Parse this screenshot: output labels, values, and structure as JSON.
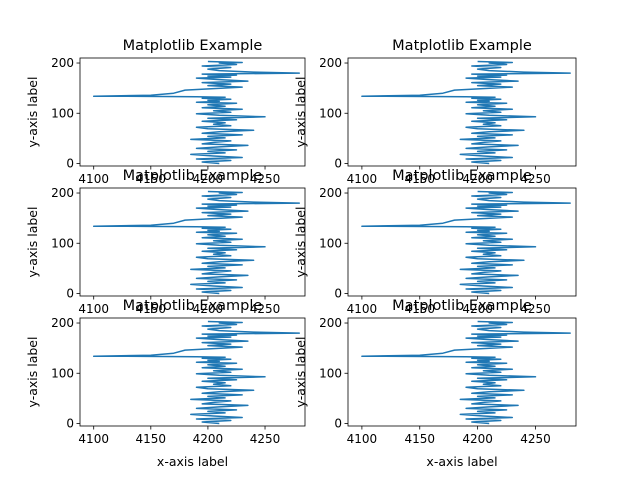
{
  "figure": {
    "background": "#ffffff",
    "line_color": "#1f77b4",
    "rows": 2,
    "cols": 3
  },
  "chart_data": [
    {
      "type": "line",
      "title": "Matplotlib Example",
      "xlabel": "",
      "ylabel": "y-axis label",
      "xlim": [
        4088,
        4285
      ],
      "ylim": [
        -5,
        210
      ],
      "xticks": [
        4100,
        4150,
        4200,
        4250
      ],
      "yticks": [
        0,
        100,
        200
      ],
      "grid": false,
      "legend": "none",
      "series": [
        {
          "x": [
            4210,
            4195,
            4220,
            4190,
            4230,
            4205,
            4185,
            4215,
            4200,
            4225,
            4190,
            4210,
            4235,
            4195,
            4205,
            4220,
            4185,
            4215,
            4200,
            4230,
            4195,
            4210,
            4240,
            4200,
            4190,
            4220,
            4205,
            4215,
            4195,
            4225,
            4200,
            4250,
            4210,
            4190,
            4220,
            4205,
            4230,
            4195,
            4215,
            4200,
            4225,
            4190,
            4210,
            4200,
            4220,
            4195,
            4205,
            4215,
            4190,
            4120,
            4100,
            4150,
            4170,
            4180,
            4230,
            4200,
            4220,
            4195,
            4235,
            4210,
            4190,
            4220,
            4200,
            4225,
            4195,
            4280,
            4240,
            4210,
            4200,
            4220,
            4195,
            4225,
            4210,
            4230,
            4200
          ],
          "y": [
            0,
            3,
            6,
            9,
            12,
            15,
            18,
            21,
            24,
            27,
            30,
            33,
            36,
            39,
            42,
            45,
            48,
            51,
            54,
            57,
            60,
            63,
            66,
            69,
            72,
            75,
            78,
            81,
            84,
            87,
            90,
            93,
            96,
            99,
            102,
            105,
            108,
            111,
            114,
            117,
            120,
            122,
            124,
            126,
            128,
            130,
            131,
            132,
            133,
            134,
            134,
            136,
            140,
            146,
            152,
            155,
            158,
            161,
            164,
            167,
            170,
            172,
            174,
            176,
            178,
            180,
            182,
            185,
            188,
            191,
            194,
            197,
            200,
            201,
            203
          ]
        }
      ]
    },
    {
      "type": "line",
      "title": "Matplotlib Example",
      "xlabel": "",
      "ylabel": "y-axis label",
      "xlim": [
        4088,
        4285
      ],
      "ylim": [
        -5,
        210
      ],
      "xticks": [
        4100,
        4150,
        4200,
        4250
      ],
      "yticks": [
        0,
        100,
        200
      ],
      "grid": false,
      "legend": "none",
      "series": [
        {
          "x": [
            4210,
            4195,
            4220,
            4190,
            4230,
            4205,
            4185,
            4215,
            4200,
            4225,
            4190,
            4210,
            4235,
            4195,
            4205,
            4220,
            4185,
            4215,
            4200,
            4230,
            4195,
            4210,
            4240,
            4200,
            4190,
            4220,
            4205,
            4215,
            4195,
            4225,
            4200,
            4250,
            4210,
            4190,
            4220,
            4205,
            4230,
            4195,
            4215,
            4200,
            4225,
            4190,
            4210,
            4200,
            4220,
            4195,
            4205,
            4215,
            4190,
            4120,
            4100,
            4150,
            4170,
            4180,
            4230,
            4200,
            4220,
            4195,
            4235,
            4210,
            4190,
            4220,
            4200,
            4225,
            4195,
            4280,
            4240,
            4210,
            4200,
            4220,
            4195,
            4225,
            4210,
            4230,
            4200
          ],
          "y": [
            0,
            3,
            6,
            9,
            12,
            15,
            18,
            21,
            24,
            27,
            30,
            33,
            36,
            39,
            42,
            45,
            48,
            51,
            54,
            57,
            60,
            63,
            66,
            69,
            72,
            75,
            78,
            81,
            84,
            87,
            90,
            93,
            96,
            99,
            102,
            105,
            108,
            111,
            114,
            117,
            120,
            122,
            124,
            126,
            128,
            130,
            131,
            132,
            133,
            134,
            134,
            136,
            140,
            146,
            152,
            155,
            158,
            161,
            164,
            167,
            170,
            172,
            174,
            176,
            178,
            180,
            182,
            185,
            188,
            191,
            194,
            197,
            200,
            201,
            203
          ]
        }
      ]
    },
    {
      "type": "line",
      "title": "Matplotlib Example",
      "xlabel": "",
      "ylabel": "y-axis label",
      "xlim": [
        4088,
        4285
      ],
      "ylim": [
        -5,
        210
      ],
      "xticks": [
        4100,
        4150,
        4200,
        4250
      ],
      "yticks": [
        0,
        100,
        200
      ],
      "grid": false,
      "legend": "none",
      "series": [
        {
          "x": [
            4210,
            4195,
            4220,
            4190,
            4230,
            4205,
            4185,
            4215,
            4200,
            4225,
            4190,
            4210,
            4235,
            4195,
            4205,
            4220,
            4185,
            4215,
            4200,
            4230,
            4195,
            4210,
            4240,
            4200,
            4190,
            4220,
            4205,
            4215,
            4195,
            4225,
            4200,
            4250,
            4210,
            4190,
            4220,
            4205,
            4230,
            4195,
            4215,
            4200,
            4225,
            4190,
            4210,
            4200,
            4220,
            4195,
            4205,
            4215,
            4190,
            4120,
            4100,
            4150,
            4170,
            4180,
            4230,
            4200,
            4220,
            4195,
            4235,
            4210,
            4190,
            4220,
            4200,
            4225,
            4195,
            4280,
            4240,
            4210,
            4200,
            4220,
            4195,
            4225,
            4210,
            4230,
            4200
          ],
          "y": [
            0,
            3,
            6,
            9,
            12,
            15,
            18,
            21,
            24,
            27,
            30,
            33,
            36,
            39,
            42,
            45,
            48,
            51,
            54,
            57,
            60,
            63,
            66,
            69,
            72,
            75,
            78,
            81,
            84,
            87,
            90,
            93,
            96,
            99,
            102,
            105,
            108,
            111,
            114,
            117,
            120,
            122,
            124,
            126,
            128,
            130,
            131,
            132,
            133,
            134,
            134,
            136,
            140,
            146,
            152,
            155,
            158,
            161,
            164,
            167,
            170,
            172,
            174,
            176,
            178,
            180,
            182,
            185,
            188,
            191,
            194,
            197,
            200,
            201,
            203
          ]
        }
      ]
    },
    {
      "type": "line",
      "title": "Matplotlib Example",
      "xlabel": "",
      "ylabel": "y-axis label",
      "xlim": [
        4088,
        4285
      ],
      "ylim": [
        -5,
        210
      ],
      "xticks": [
        4100,
        4150,
        4200,
        4250
      ],
      "yticks": [
        0,
        100,
        200
      ],
      "grid": false,
      "legend": "none",
      "series": [
        {
          "x": [
            4210,
            4195,
            4220,
            4190,
            4230,
            4205,
            4185,
            4215,
            4200,
            4225,
            4190,
            4210,
            4235,
            4195,
            4205,
            4220,
            4185,
            4215,
            4200,
            4230,
            4195,
            4210,
            4240,
            4200,
            4190,
            4220,
            4205,
            4215,
            4195,
            4225,
            4200,
            4250,
            4210,
            4190,
            4220,
            4205,
            4230,
            4195,
            4215,
            4200,
            4225,
            4190,
            4210,
            4200,
            4220,
            4195,
            4205,
            4215,
            4190,
            4120,
            4100,
            4150,
            4170,
            4180,
            4230,
            4200,
            4220,
            4195,
            4235,
            4210,
            4190,
            4220,
            4200,
            4225,
            4195,
            4280,
            4240,
            4210,
            4200,
            4220,
            4195,
            4225,
            4210,
            4230,
            4200
          ],
          "y": [
            0,
            3,
            6,
            9,
            12,
            15,
            18,
            21,
            24,
            27,
            30,
            33,
            36,
            39,
            42,
            45,
            48,
            51,
            54,
            57,
            60,
            63,
            66,
            69,
            72,
            75,
            78,
            81,
            84,
            87,
            90,
            93,
            96,
            99,
            102,
            105,
            108,
            111,
            114,
            117,
            120,
            122,
            124,
            126,
            128,
            130,
            131,
            132,
            133,
            134,
            134,
            136,
            140,
            146,
            152,
            155,
            158,
            161,
            164,
            167,
            170,
            172,
            174,
            176,
            178,
            180,
            182,
            185,
            188,
            191,
            194,
            197,
            200,
            201,
            203
          ]
        }
      ]
    },
    {
      "type": "line",
      "title": "Matplotlib Example",
      "xlabel": "x-axis label",
      "ylabel": "y-axis label",
      "xlim": [
        4088,
        4285
      ],
      "ylim": [
        -5,
        210
      ],
      "xticks": [
        4100,
        4150,
        4200,
        4250
      ],
      "yticks": [
        0,
        100,
        200
      ],
      "grid": false,
      "legend": "none",
      "series": [
        {
          "x": [
            4210,
            4195,
            4220,
            4190,
            4230,
            4205,
            4185,
            4215,
            4200,
            4225,
            4190,
            4210,
            4235,
            4195,
            4205,
            4220,
            4185,
            4215,
            4200,
            4230,
            4195,
            4210,
            4240,
            4200,
            4190,
            4220,
            4205,
            4215,
            4195,
            4225,
            4200,
            4250,
            4210,
            4190,
            4220,
            4205,
            4230,
            4195,
            4215,
            4200,
            4225,
            4190,
            4210,
            4200,
            4220,
            4195,
            4205,
            4215,
            4190,
            4120,
            4100,
            4150,
            4170,
            4180,
            4230,
            4200,
            4220,
            4195,
            4235,
            4210,
            4190,
            4220,
            4200,
            4225,
            4195,
            4280,
            4240,
            4210,
            4200,
            4220,
            4195,
            4225,
            4210,
            4230,
            4200
          ],
          "y": [
            0,
            3,
            6,
            9,
            12,
            15,
            18,
            21,
            24,
            27,
            30,
            33,
            36,
            39,
            42,
            45,
            48,
            51,
            54,
            57,
            60,
            63,
            66,
            69,
            72,
            75,
            78,
            81,
            84,
            87,
            90,
            93,
            96,
            99,
            102,
            105,
            108,
            111,
            114,
            117,
            120,
            122,
            124,
            126,
            128,
            130,
            131,
            132,
            133,
            134,
            134,
            136,
            140,
            146,
            152,
            155,
            158,
            161,
            164,
            167,
            170,
            172,
            174,
            176,
            178,
            180,
            182,
            185,
            188,
            191,
            194,
            197,
            200,
            201,
            203
          ]
        }
      ]
    },
    {
      "type": "line",
      "title": "Matplotlib Example",
      "xlabel": "x-axis label",
      "ylabel": "y-axis label",
      "xlim": [
        4088,
        4285
      ],
      "ylim": [
        -5,
        210
      ],
      "xticks": [
        4100,
        4150,
        4200,
        4250
      ],
      "yticks": [
        0,
        100,
        200
      ],
      "grid": false,
      "legend": "none",
      "series": [
        {
          "x": [
            4210,
            4195,
            4220,
            4190,
            4230,
            4205,
            4185,
            4215,
            4200,
            4225,
            4190,
            4210,
            4235,
            4195,
            4205,
            4220,
            4185,
            4215,
            4200,
            4230,
            4195,
            4210,
            4240,
            4200,
            4190,
            4220,
            4205,
            4215,
            4195,
            4225,
            4200,
            4250,
            4210,
            4190,
            4220,
            4205,
            4230,
            4195,
            4215,
            4200,
            4225,
            4190,
            4210,
            4200,
            4220,
            4195,
            4205,
            4215,
            4190,
            4120,
            4100,
            4150,
            4170,
            4180,
            4230,
            4200,
            4220,
            4195,
            4235,
            4210,
            4190,
            4220,
            4200,
            4225,
            4195,
            4280,
            4240,
            4210,
            4200,
            4220,
            4195,
            4225,
            4210,
            4230,
            4200
          ],
          "y": [
            0,
            3,
            6,
            9,
            12,
            15,
            18,
            21,
            24,
            27,
            30,
            33,
            36,
            39,
            42,
            45,
            48,
            51,
            54,
            57,
            60,
            63,
            66,
            69,
            72,
            75,
            78,
            81,
            84,
            87,
            90,
            93,
            96,
            99,
            102,
            105,
            108,
            111,
            114,
            117,
            120,
            122,
            124,
            126,
            128,
            130,
            131,
            132,
            133,
            134,
            134,
            136,
            140,
            146,
            152,
            155,
            158,
            161,
            164,
            167,
            170,
            172,
            174,
            176,
            178,
            180,
            182,
            185,
            188,
            191,
            194,
            197,
            200,
            201,
            203
          ]
        }
      ]
    }
  ]
}
